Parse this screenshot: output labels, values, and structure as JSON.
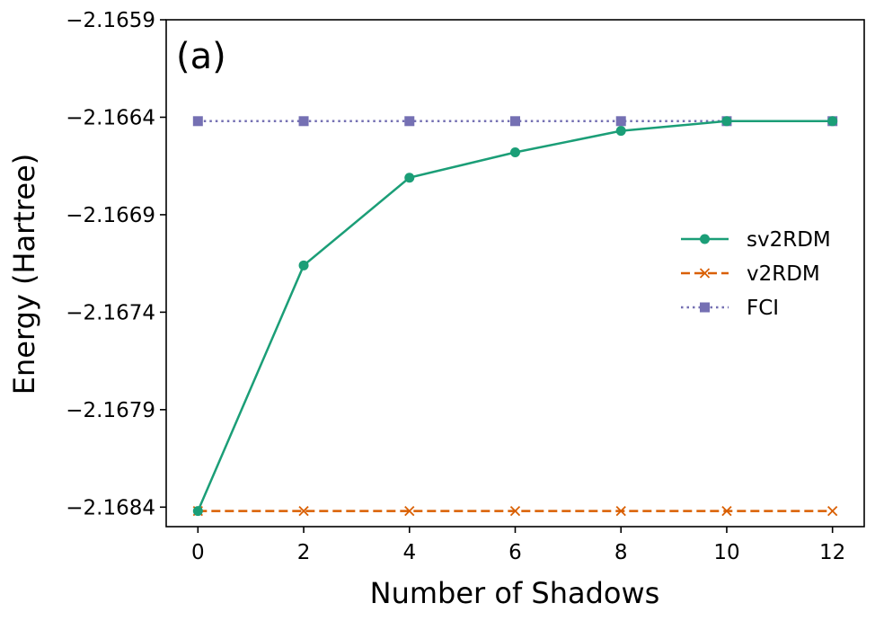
{
  "chart_data": {
    "type": "line",
    "panel_label": "(a)",
    "xlabel": "Number of Shadows",
    "ylabel": "Energy (Hartree)",
    "xlim": [
      -0.6,
      12.6
    ],
    "ylim": [
      -2.1685,
      -2.1659
    ],
    "xticks": [
      0,
      2,
      4,
      6,
      8,
      10,
      12
    ],
    "xtick_labels": [
      "0",
      "2",
      "4",
      "6",
      "8",
      "10",
      "12"
    ],
    "yticks": [
      -2.1684,
      -2.1679,
      -2.1674,
      -2.1669,
      -2.1664,
      -2.1659
    ],
    "ytick_labels": [
      "−2.1684",
      "−2.1679",
      "−2.1674",
      "−2.1669",
      "−2.1664",
      "−2.1659"
    ],
    "x": [
      0,
      2,
      4,
      6,
      8,
      10,
      12
    ],
    "legend_position": "center-right",
    "series": [
      {
        "name": "sv2RDM",
        "color": "#1b9e77",
        "line_style": "solid",
        "marker": "circle",
        "values": [
          -2.16842,
          -2.16716,
          -2.16671,
          -2.16658,
          -2.16647,
          -2.16642,
          -2.16642
        ]
      },
      {
        "name": "v2RDM",
        "color": "#d95f02",
        "line_style": "dashed",
        "marker": "x",
        "values": [
          -2.16842,
          -2.16842,
          -2.16842,
          -2.16842,
          -2.16842,
          -2.16842,
          -2.16842
        ]
      },
      {
        "name": "FCI",
        "color": "#7570b3",
        "line_style": "dotted",
        "marker": "square",
        "values": [
          -2.16642,
          -2.16642,
          -2.16642,
          -2.16642,
          -2.16642,
          -2.16642,
          -2.16642
        ]
      }
    ]
  }
}
